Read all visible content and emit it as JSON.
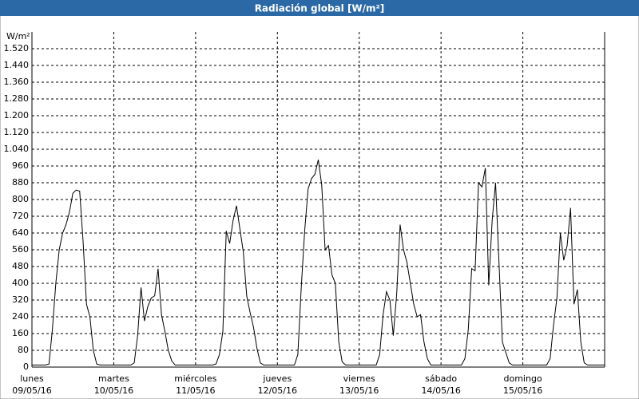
{
  "chart_data": {
    "type": "line",
    "title": "Radiación global [W/m²]",
    "y_label": "W/m²",
    "x": [
      0,
      1,
      2,
      3,
      4,
      5,
      6,
      7,
      8,
      9,
      10,
      11,
      12,
      13,
      14,
      15,
      16,
      17,
      18,
      19,
      20,
      21,
      22,
      23,
      24,
      25,
      26,
      27,
      28,
      29,
      30,
      31,
      32,
      33,
      34,
      35,
      36,
      37,
      38,
      39,
      40,
      41,
      42,
      43,
      44,
      45,
      46,
      47,
      48,
      49,
      50,
      51,
      52,
      53,
      54,
      55,
      56,
      57,
      58,
      59,
      60,
      61,
      62,
      63,
      64,
      65,
      66,
      67,
      68,
      69,
      70,
      71,
      72,
      73,
      74,
      75,
      76,
      77,
      78,
      79,
      80,
      81,
      82,
      83,
      84,
      85,
      86,
      87,
      88,
      89,
      90,
      91,
      92,
      93,
      94,
      95,
      96,
      97,
      98,
      99,
      100,
      101,
      102,
      103,
      104,
      105,
      106,
      107,
      108,
      109,
      110,
      111,
      112,
      113,
      114,
      115,
      116,
      117,
      118,
      119,
      120,
      121,
      122,
      123,
      124,
      125,
      126,
      127,
      128,
      129,
      130,
      131,
      132,
      133,
      134,
      135,
      136,
      137,
      138,
      139,
      140,
      141,
      142,
      143,
      144,
      145,
      146,
      147,
      148,
      149,
      150,
      151,
      152,
      153,
      154,
      155,
      156,
      157,
      158,
      159,
      160,
      161,
      162,
      163,
      164,
      165,
      166,
      167,
      168
    ],
    "series": [
      {
        "color": "#000000",
        "values": [
          10,
          10,
          10,
          10,
          10,
          15,
          180,
          400,
          560,
          640,
          680,
          740,
          830,
          845,
          840,
          600,
          300,
          240,
          80,
          15,
          10,
          10,
          10,
          10,
          10,
          10,
          10,
          10,
          10,
          10,
          20,
          150,
          380,
          220,
          290,
          330,
          340,
          470,
          250,
          170,
          80,
          30,
          10,
          10,
          10,
          10,
          10,
          10,
          10,
          10,
          10,
          10,
          10,
          10,
          15,
          60,
          170,
          650,
          590,
          700,
          770,
          660,
          550,
          340,
          260,
          190,
          90,
          20,
          10,
          10,
          10,
          10,
          10,
          10,
          10,
          10,
          10,
          10,
          60,
          380,
          650,
          850,
          900,
          920,
          990,
          870,
          560,
          580,
          440,
          400,
          120,
          25,
          10,
          10,
          10,
          10,
          10,
          10,
          10,
          10,
          10,
          10,
          60,
          250,
          360,
          320,
          150,
          350,
          680,
          560,
          500,
          400,
          300,
          240,
          250,
          120,
          40,
          10,
          10,
          10,
          10,
          10,
          10,
          10,
          10,
          10,
          10,
          40,
          180,
          470,
          460,
          880,
          860,
          950,
          390,
          700,
          880,
          500,
          120,
          70,
          20,
          10,
          10,
          10,
          10,
          10,
          10,
          10,
          10,
          10,
          10,
          10,
          40,
          200,
          330,
          640,
          510,
          580,
          760,
          300,
          370,
          120,
          20,
          10,
          10,
          10,
          10,
          10,
          10
        ]
      }
    ],
    "xlim": [
      0,
      168
    ],
    "xticks": [
      {
        "value": 0,
        "label": "lunes",
        "date": "09/05/16"
      },
      {
        "value": 24,
        "label": "martes",
        "date": "10/05/16"
      },
      {
        "value": 48,
        "label": "miércoles",
        "date": "11/05/16"
      },
      {
        "value": 72,
        "label": "jueves",
        "date": "12/05/16"
      },
      {
        "value": 96,
        "label": "viernes",
        "date": "13/05/16"
      },
      {
        "value": 120,
        "label": "sábado",
        "date": "14/05/16"
      },
      {
        "value": 144,
        "label": "domingo",
        "date": "15/05/16"
      }
    ],
    "ylim": [
      0,
      1600
    ],
    "yticks": [
      0,
      80,
      160,
      240,
      320,
      400,
      480,
      560,
      640,
      720,
      800,
      880,
      960,
      {
        "value": 1040,
        "label": "1.040"
      },
      {
        "value": 1120,
        "label": "1.120"
      },
      {
        "value": 1200,
        "label": "1.200"
      },
      {
        "value": 1280,
        "label": "1.280"
      },
      {
        "value": 1360,
        "label": "1.360"
      },
      {
        "value": 1440,
        "label": "1.440"
      },
      {
        "value": 1520,
        "label": "1.520"
      }
    ],
    "grid": true
  }
}
